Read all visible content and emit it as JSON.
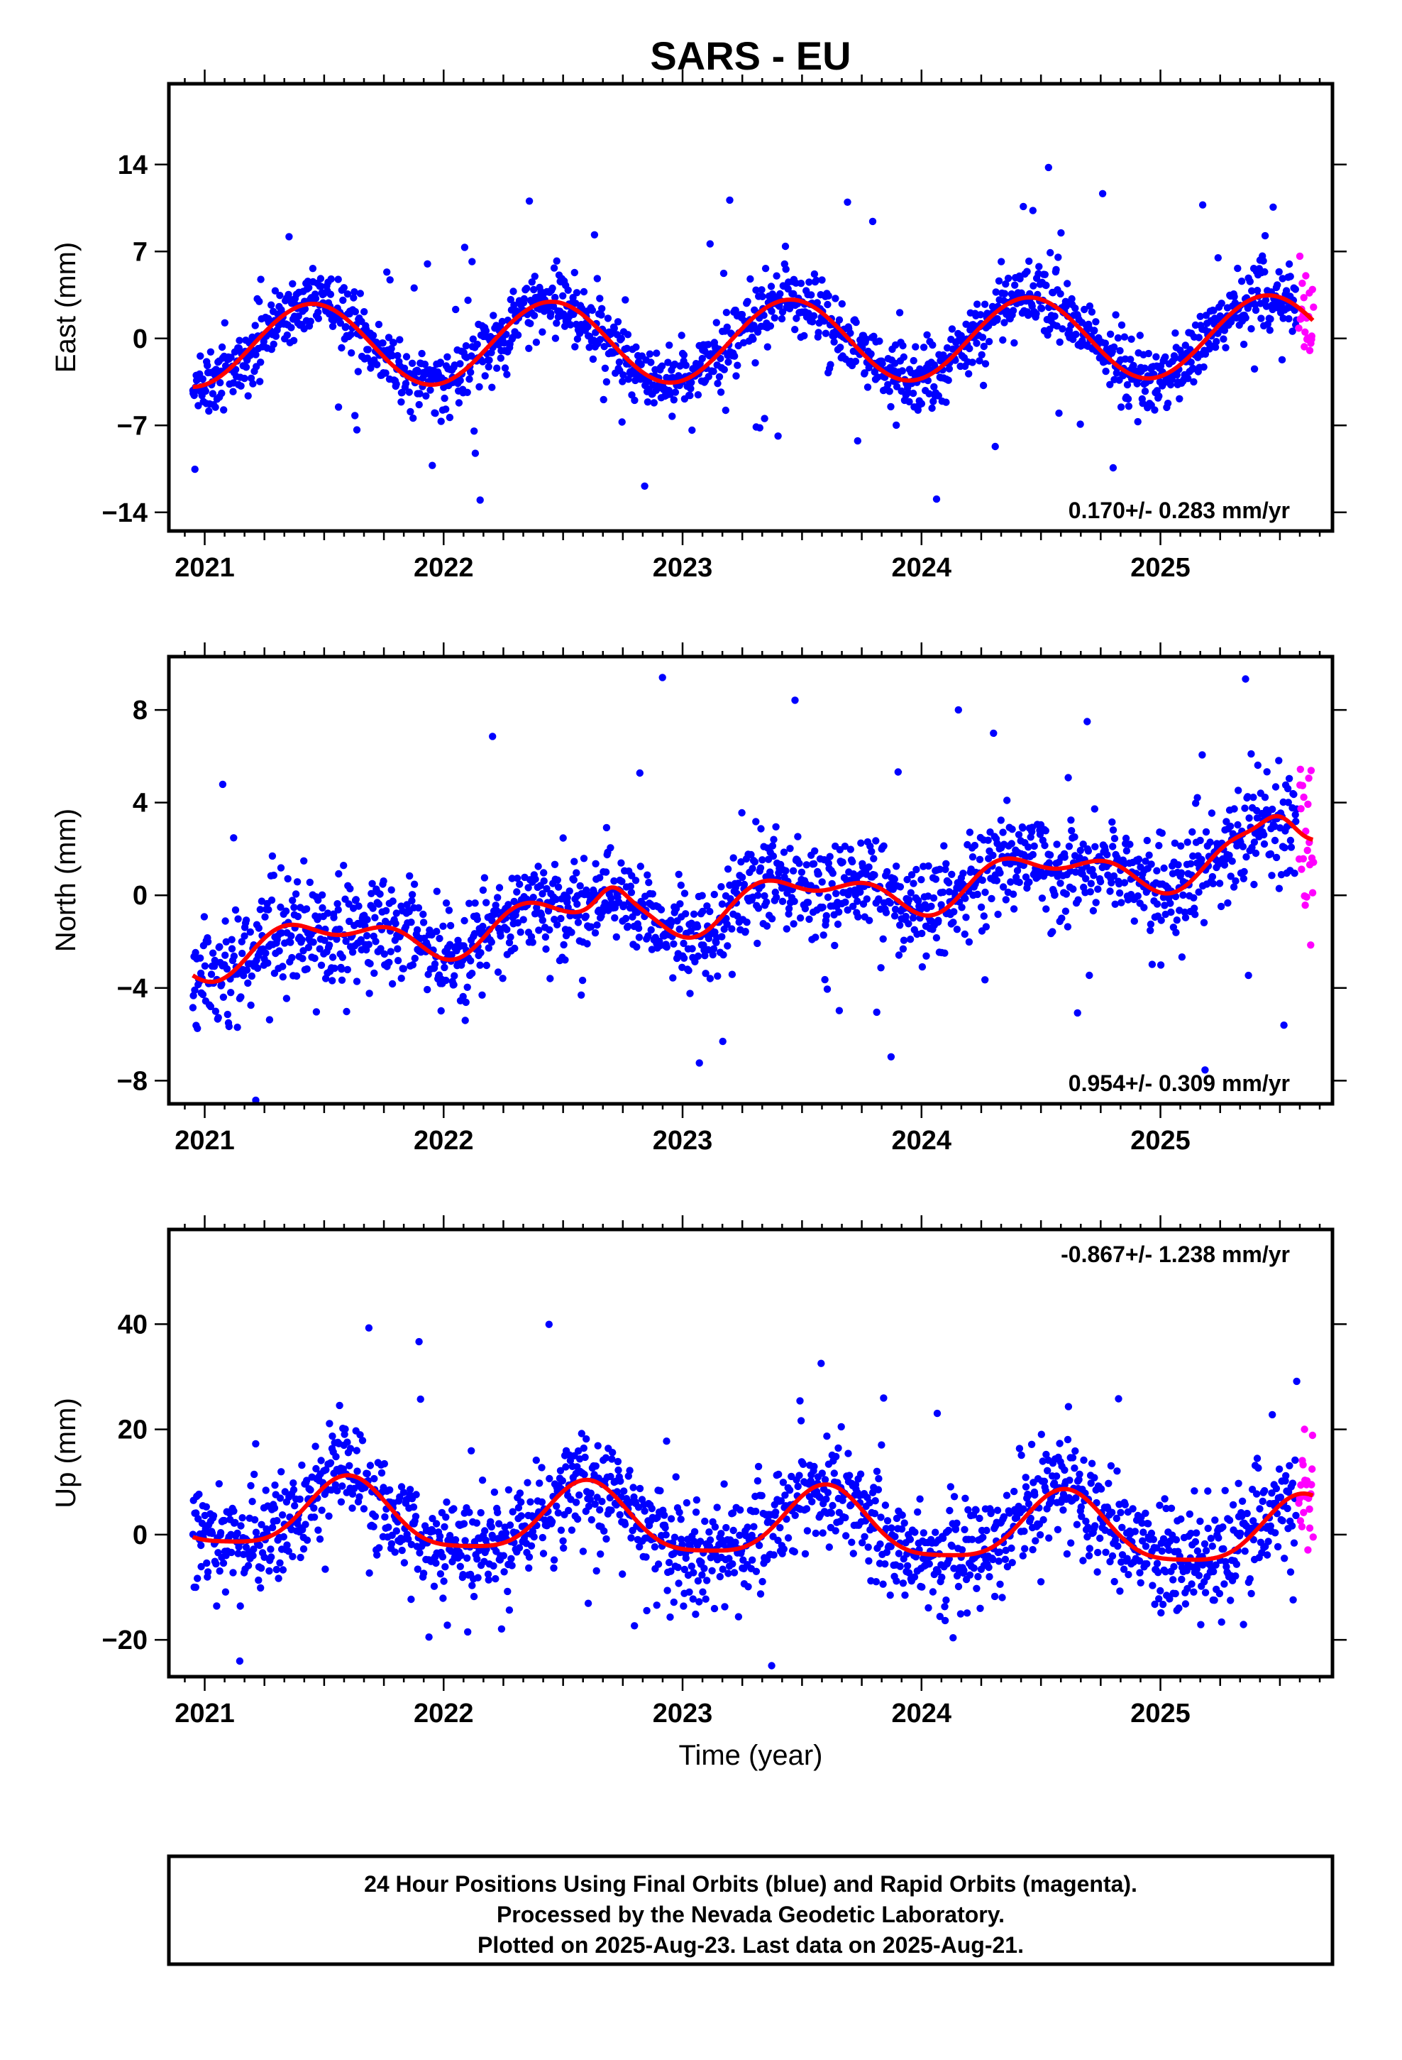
{
  "chart_data": [
    {
      "type": "scatter",
      "title": "SARS - EU",
      "xlabel": "",
      "ylabel": "East (mm)",
      "xlim": [
        2020.85,
        2025.72
      ],
      "ylim": [
        -15.5,
        20.5
      ],
      "xticks": [
        2021,
        2022,
        2023,
        2024,
        2025
      ],
      "xtick_labels": [
        "2021",
        "2022",
        "2023",
        "2024",
        "2025"
      ],
      "yticks": [
        -14,
        -7,
        0,
        7,
        14
      ],
      "ytick_labels": [
        "−14",
        "−7",
        "0",
        "7",
        "14"
      ],
      "rate_label": "0.170+/- 0.283 mm/yr",
      "rate_position": "bottom-right",
      "model": {
        "rate": 0.17,
        "offset": -0.2,
        "annual_amp": 3.3,
        "annual_peak": 2021.45,
        "semi_amp": 0.0,
        "semi_phase": 0.0,
        "bumps": []
      },
      "series": [
        {
          "name": "",
          "orbit": "final",
          "color": "#0000ff",
          "x_start": 2020.95,
          "x_end": 2025.57,
          "count": 1650,
          "noise": 1.3,
          "outlier_rate": 0.05,
          "outlier_scale": 5.0
        },
        {
          "name": "",
          "orbit": "rapid",
          "color": "#ff00ff",
          "x_start": 2025.58,
          "x_end": 2025.64,
          "count": 22,
          "noise": 2.6
        }
      ],
      "grid": false
    },
    {
      "type": "scatter",
      "title": "",
      "xlabel": "",
      "ylabel": "North (mm)",
      "xlim": [
        2020.85,
        2025.72
      ],
      "ylim": [
        -9.0,
        10.3
      ],
      "xticks": [
        2021,
        2022,
        2023,
        2024,
        2025
      ],
      "xtick_labels": [
        "2021",
        "2022",
        "2023",
        "2024",
        "2025"
      ],
      "yticks": [
        -8,
        -4,
        0,
        4,
        8
      ],
      "ytick_labels": [
        "−8",
        "−4",
        "0",
        "4",
        "8"
      ],
      "rate_label": "0.954+/- 0.309 mm/yr",
      "rate_position": "bottom-right",
      "model": {
        "rate": 0.954,
        "offset": -0.3,
        "annual_amp": 0.8,
        "annual_peak": 2021.5,
        "semi_amp": 0.5,
        "semi_phase": 2021.3,
        "bumps": [
          [
            2022.7,
            0.8,
            0.08
          ],
          [
            2025.5,
            1.2,
            0.1
          ]
        ]
      },
      "series": [
        {
          "name": "",
          "orbit": "final",
          "color": "#0000ff",
          "x_start": 2020.95,
          "x_end": 2025.57,
          "count": 1650,
          "noise": 1.05,
          "outlier_rate": 0.05,
          "outlier_scale": 4.0
        },
        {
          "name": "",
          "orbit": "rapid",
          "color": "#ff00ff",
          "x_start": 2025.58,
          "x_end": 2025.64,
          "count": 22,
          "noise": 3.2
        }
      ],
      "grid": false
    },
    {
      "type": "scatter",
      "title": "",
      "xlabel": "Time (year)",
      "ylabel": "Up (mm)",
      "xlim": [
        2020.85,
        2025.72
      ],
      "ylim": [
        -27.0,
        58.0
      ],
      "xticks": [
        2021,
        2022,
        2023,
        2024,
        2025
      ],
      "xtick_labels": [
        "2021",
        "2022",
        "2023",
        "2024",
        "2025"
      ],
      "yticks": [
        -20,
        0,
        20,
        40
      ],
      "ytick_labels": [
        "−20",
        "0",
        "20",
        "40"
      ],
      "rate_label": "-0.867+/- 1.238 mm/yr",
      "rate_position": "top-right",
      "model": {
        "rate": -0.867,
        "offset": 1.8,
        "annual_amp": 6.5,
        "annual_peak": 2021.6,
        "semi_amp": 1.5,
        "semi_phase": 2021.6,
        "bumps": []
      },
      "series": [
        {
          "name": "",
          "orbit": "final",
          "color": "#0000ff",
          "x_start": 2020.95,
          "x_end": 2025.57,
          "count": 1650,
          "noise": 5.0,
          "outlier_rate": 0.05,
          "outlier_scale": 4.0
        },
        {
          "name": "",
          "orbit": "rapid",
          "color": "#ff00ff",
          "x_start": 2025.58,
          "x_end": 2025.64,
          "count": 22,
          "noise": 7.5
        }
      ],
      "grid": false
    }
  ],
  "caption": {
    "line1": "24 Hour Positions Using Final Orbits (blue) and Rapid Orbits (magenta).",
    "line2": "Processed by the Nevada Geodetic Laboratory.",
    "line3": "Plotted on 2025-Aug-23. Last data on 2025-Aug-21."
  }
}
